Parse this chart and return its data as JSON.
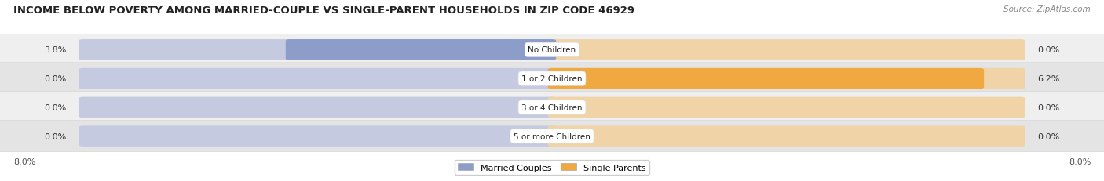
{
  "title": "INCOME BELOW POVERTY AMONG MARRIED-COUPLE VS SINGLE-PARENT HOUSEHOLDS IN ZIP CODE 46929",
  "source": "Source: ZipAtlas.com",
  "categories": [
    "No Children",
    "1 or 2 Children",
    "3 or 4 Children",
    "5 or more Children"
  ],
  "married_couples": [
    3.8,
    0.0,
    0.0,
    0.0
  ],
  "single_parents": [
    0.0,
    6.2,
    0.0,
    0.0
  ],
  "axis_left_label": "8.0%",
  "axis_right_label": "8.0%",
  "xlim_max": 8.0,
  "married_color": "#8b9dc8",
  "married_bg_color": "#c5cae0",
  "single_color": "#f0a840",
  "single_bg_color": "#f0d4a8",
  "row_bg_even": "#efefef",
  "row_bg_odd": "#e4e4e4",
  "title_fontsize": 9.5,
  "source_fontsize": 7.5,
  "value_fontsize": 8,
  "category_fontsize": 7.5,
  "legend_labels": [
    "Married Couples",
    "Single Parents"
  ],
  "background_color": "#ffffff"
}
